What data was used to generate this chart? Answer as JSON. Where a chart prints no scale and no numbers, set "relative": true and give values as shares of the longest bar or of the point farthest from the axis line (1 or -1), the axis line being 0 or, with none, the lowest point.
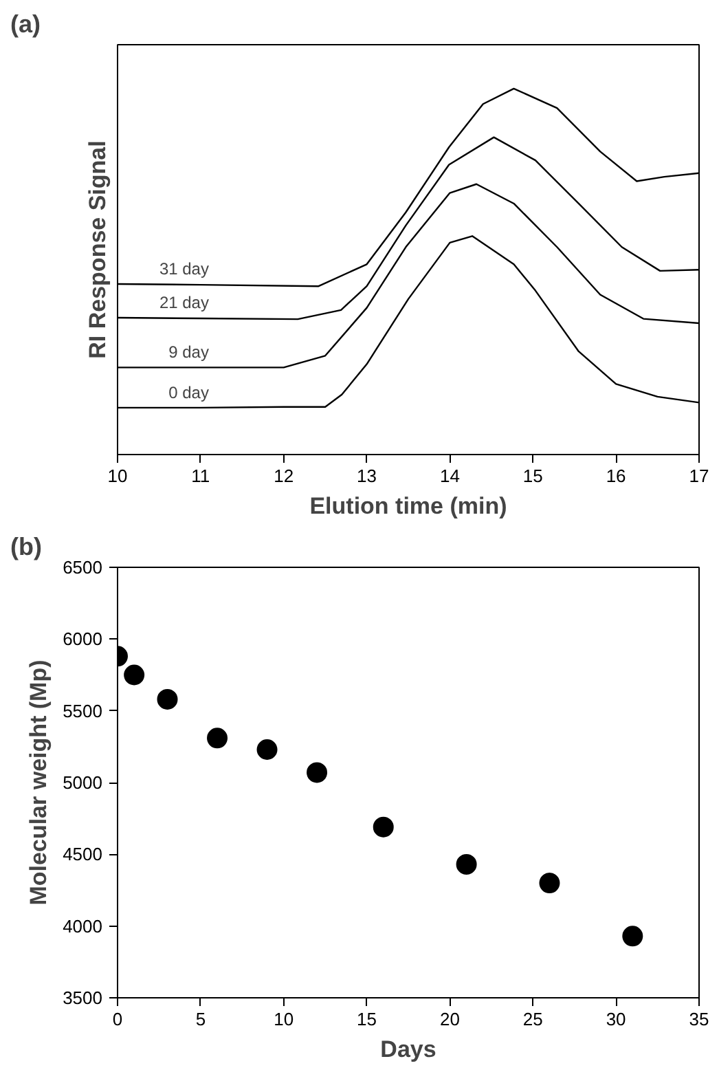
{
  "chart_data": [
    {
      "type": "line",
      "title": "(a)",
      "xlabel": "Elution time (min)",
      "ylabel": "RI Response Signal",
      "relative": true,
      "xlim": [
        10,
        17
      ],
      "xticks": [
        10,
        11,
        12,
        13,
        14,
        15,
        16,
        17
      ],
      "tick_labels": "x",
      "grid": false,
      "legend": false,
      "marker": "none",
      "line_style": "solid",
      "series": [
        {
          "name": "0 day",
          "color": "#000000",
          "x": [
            10,
            11,
            12,
            12.5,
            12.7,
            13,
            13.5,
            14,
            14.27,
            14.77,
            15.03,
            15.55,
            16,
            16.5,
            17
          ],
          "values": [
            0.128,
            0.128,
            0.13,
            0.13,
            0.164,
            0.247,
            0.425,
            0.579,
            0.597,
            0.52,
            0.448,
            0.282,
            0.193,
            0.158,
            0.142
          ]
        },
        {
          "name": "9 day",
          "color": "#000000",
          "x": [
            10,
            11,
            12,
            12.5,
            13,
            13.47,
            14,
            14.32,
            14.77,
            15.29,
            15.81,
            16.33,
            17
          ],
          "values": [
            0.238,
            0.238,
            0.238,
            0.27,
            0.401,
            0.567,
            0.715,
            0.739,
            0.686,
            0.567,
            0.437,
            0.371,
            0.359
          ]
        },
        {
          "name": "21 day",
          "color": "#000000",
          "x": [
            10,
            11,
            12.17,
            12.69,
            13,
            13.47,
            13.99,
            14.53,
            15.03,
            15.55,
            16.07,
            16.53,
            17
          ],
          "values": [
            0.374,
            0.372,
            0.37,
            0.395,
            0.46,
            0.626,
            0.792,
            0.867,
            0.804,
            0.686,
            0.567,
            0.502,
            0.505
          ]
        },
        {
          "name": "31 day",
          "color": "#000000",
          "x": [
            10,
            11,
            12.42,
            13,
            13.47,
            13.99,
            14.4,
            14.77,
            15.29,
            15.81,
            16.25,
            16.58,
            17
          ],
          "values": [
            0.466,
            0.464,
            0.46,
            0.52,
            0.662,
            0.84,
            0.958,
            1.0,
            0.947,
            0.828,
            0.747,
            0.759,
            0.769
          ]
        }
      ]
    },
    {
      "type": "scatter",
      "title": "(b)",
      "xlabel": "Days",
      "ylabel": "Molecular weight (Mp)",
      "xlim": [
        0,
        35
      ],
      "xticks": [
        0,
        5,
        10,
        15,
        20,
        25,
        30,
        35
      ],
      "ylim": [
        3500,
        6500
      ],
      "yticks": [
        3500,
        4000,
        4500,
        5000,
        5500,
        6000,
        6500
      ],
      "grid": false,
      "legend": false,
      "marker": "circle",
      "x": [
        0,
        1,
        3,
        6,
        9,
        12,
        16,
        21,
        26,
        31
      ],
      "series": [
        {
          "color": "#000000",
          "values": [
            5880,
            5750,
            5580,
            5310,
            5230,
            5070,
            4690,
            4430,
            4300,
            3930
          ]
        }
      ]
    }
  ]
}
